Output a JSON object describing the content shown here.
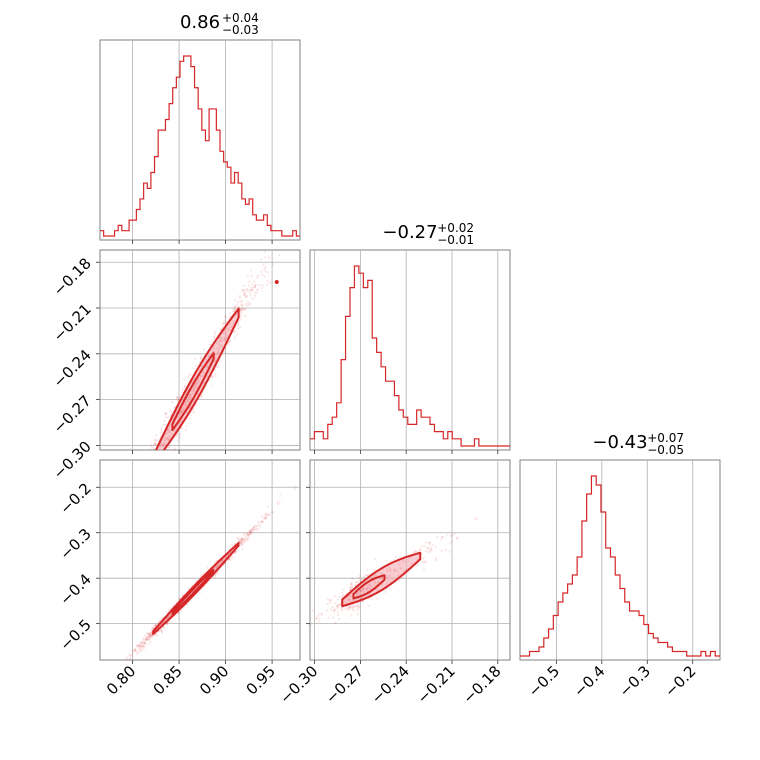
{
  "chart_data": {
    "type": "corner",
    "colors": {
      "line": "#d62728",
      "contour_fill": "#f4a6ad",
      "grid": "#b0b0b0",
      "frame": "#808080"
    },
    "grid": true,
    "parameters": [
      {
        "title": {
          "median": "0.86",
          "plus": "+0.04",
          "minus": "−0.03"
        },
        "range": [
          0.765,
          0.98
        ],
        "ticks": [
          0.8,
          0.85,
          0.9,
          0.95
        ],
        "ticklabels": [
          "0.80",
          "0.85",
          "0.90",
          "0.95"
        ],
        "hist": {
          "edges_range": [
            0.765,
            0.98
          ],
          "counts": [
            1,
            0,
            0,
            0,
            1,
            2,
            1,
            1,
            3,
            3,
            5,
            7,
            10,
            9,
            12,
            15,
            20,
            20,
            22,
            25,
            28,
            30,
            33,
            34,
            34,
            32,
            28,
            24,
            20,
            18,
            24,
            24,
            20,
            16,
            14,
            13,
            10,
            12,
            10,
            7,
            6,
            7,
            4,
            3,
            3,
            4,
            2,
            1,
            1,
            1,
            0,
            0,
            0,
            1,
            0
          ]
        }
      },
      {
        "title": {
          "median": "−0.27",
          "plus": "+0.02",
          "minus": "−0.01"
        },
        "range": [
          -0.303,
          -0.172
        ],
        "ticks": [
          -0.3,
          -0.27,
          -0.24,
          -0.21,
          -0.18
        ],
        "ticklabels": [
          "−0.30",
          "−0.27",
          "−0.24",
          "−0.21",
          "−0.18"
        ],
        "hist": {
          "edges_range": [
            -0.303,
            -0.172
          ],
          "counts": [
            1,
            2,
            2,
            1,
            3,
            4,
            6,
            12,
            18,
            22,
            25,
            24,
            22,
            23,
            15,
            13,
            11,
            9,
            9,
            7,
            5,
            4,
            3,
            3,
            5,
            4,
            4,
            3,
            2,
            2,
            1,
            2,
            1,
            1,
            0,
            0,
            0,
            1,
            0,
            0,
            0,
            0,
            0,
            0,
            0
          ]
        }
      },
      {
        "title": {
          "median": "−0.43",
          "plus": "+0.07",
          "minus": "−0.05"
        },
        "range": [
          -0.58,
          -0.14
        ],
        "ticks": [
          -0.5,
          -0.4,
          -0.3,
          -0.2
        ],
        "ticklabels": [
          "−0.5",
          "−0.4",
          "−0.3",
          "−0.2"
        ],
        "hist": {
          "edges_range": [
            -0.58,
            -0.14
          ],
          "counts": [
            0,
            0,
            1,
            1,
            2,
            4,
            6,
            9,
            12,
            14,
            16,
            18,
            22,
            30,
            36,
            40,
            38,
            32,
            24,
            22,
            18,
            15,
            12,
            10,
            10,
            9,
            7,
            5,
            4,
            3,
            3,
            2,
            1,
            1,
            1,
            0,
            0,
            0,
            1,
            0,
            1,
            0
          ]
        }
      }
    ],
    "pairs": [
      {
        "x": 0,
        "y": 1,
        "relation": {
          "slope": 1.05,
          "intercept": -1.173,
          "spread": 0.006
        },
        "extra_points": [
          [
            0.955,
            -0.193
          ]
        ]
      },
      {
        "x": 0,
        "y": 2,
        "relation": {
          "slope": 2.12,
          "intercept": -2.263,
          "spread": 0.006
        },
        "extra_points": []
      },
      {
        "x": 1,
        "y": 2,
        "relation": {
          "slope": 2.02,
          "intercept": 0.115,
          "spread": 0.015
        },
        "extra_points": []
      }
    ]
  }
}
